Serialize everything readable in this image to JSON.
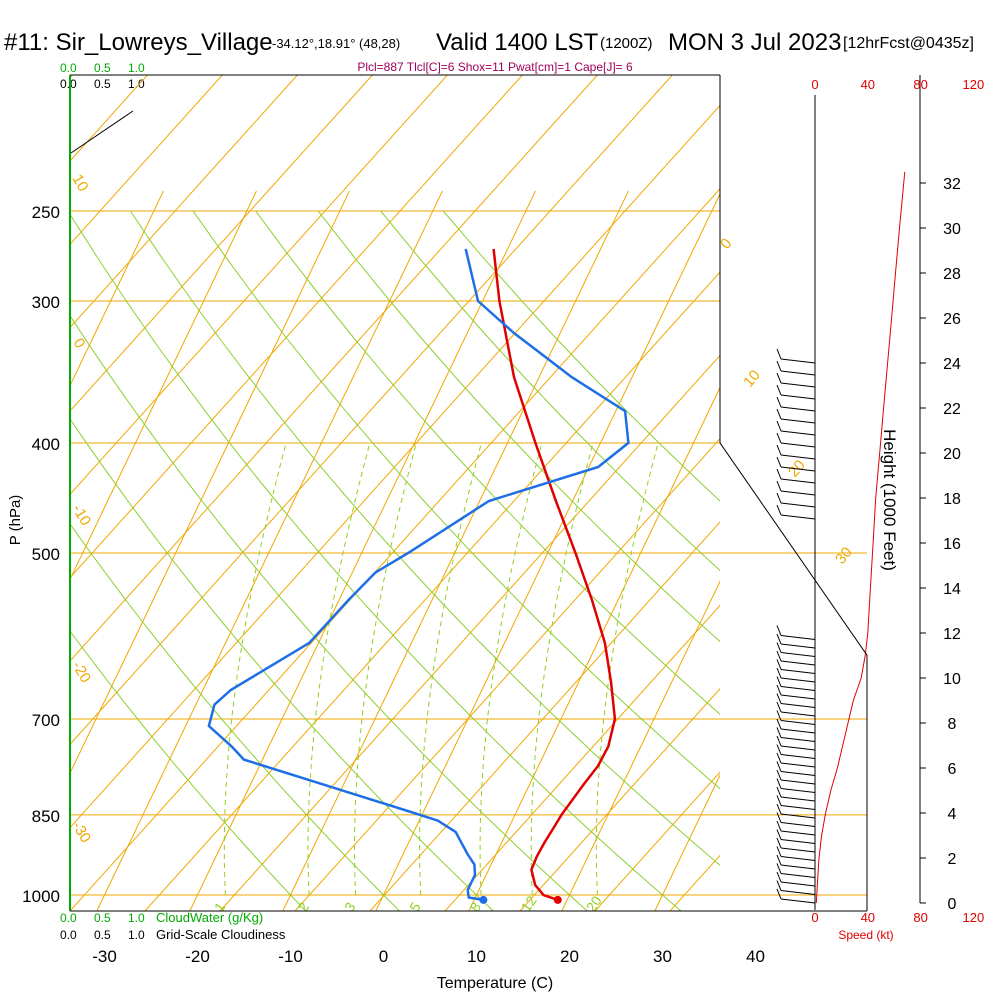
{
  "header": {
    "station": "#11: Sir_Lowreys_Village",
    "coords": "-34.12°,18.91° (48,28)",
    "valid": "Valid 1400 LST",
    "utc": "(1200Z)",
    "date": "MON 3 Jul 2023",
    "fcst": "[12hrFcst@0435z]",
    "params": "Plcl=887 Tlcl[C]=6 Shox=11 Pwat[cm]=1 Cape[J]= 6"
  },
  "colors": {
    "temp": "#e00000",
    "dewpoint": "#1e6fe6",
    "isotherm_grid": "#f0a800",
    "mixing_ratio": "#90d020",
    "adiabat": "#8ccf30",
    "cloud": "#00aa00",
    "speed": "#e00000",
    "params": "#a0005a"
  },
  "legend": {
    "cloudwater_label": "CloudWater (g/Kg)",
    "cloudiness_label": "Grid-Scale Cloudiness",
    "scale": [
      "0.0",
      "0.5",
      "1.0"
    ]
  },
  "axes": {
    "xlabel": "Temperature (C)",
    "ylabel": "P (hPa)",
    "height_label": "Height (1000 Feet)",
    "speed_label": "Speed (kt)"
  },
  "chart_data": {
    "type": "skew-t",
    "pressure_ticks": [
      250,
      300,
      400,
      500,
      700,
      850,
      1000
    ],
    "temp_ticks": [
      -30,
      -20,
      -10,
      0,
      10,
      20,
      30,
      40
    ],
    "height_ticks_kft": [
      0,
      2,
      4,
      6,
      8,
      10,
      12,
      14,
      16,
      18,
      20,
      22,
      24,
      26,
      28,
      30,
      32
    ],
    "speed_ticks_kt": [
      0,
      40,
      80,
      120
    ],
    "mixing_ratio_labels": [
      "1",
      "2",
      "3",
      "5",
      "8",
      "12",
      "20"
    ],
    "isotherm_labels": [
      "10",
      "0",
      "-10",
      "-20",
      "-30"
    ],
    "adiabat_labels": [
      "0",
      "10",
      "20",
      "30"
    ],
    "temperature_profile": [
      {
        "p": 1010,
        "t": 19.0
      },
      {
        "p": 1000,
        "t": 17.2
      },
      {
        "p": 980,
        "t": 15.8
      },
      {
        "p": 950,
        "t": 14.6
      },
      {
        "p": 925,
        "t": 14.5
      },
      {
        "p": 900,
        "t": 14.6
      },
      {
        "p": 875,
        "t": 14.8
      },
      {
        "p": 850,
        "t": 15.0
      },
      {
        "p": 800,
        "t": 15.8
      },
      {
        "p": 770,
        "t": 16.4
      },
      {
        "p": 740,
        "t": 16.5
      },
      {
        "p": 700,
        "t": 15.8
      },
      {
        "p": 650,
        "t": 13.5
      },
      {
        "p": 600,
        "t": 10.8
      },
      {
        "p": 550,
        "t": 7.2
      },
      {
        "p": 500,
        "t": 3.0
      },
      {
        "p": 450,
        "t": -1.8
      },
      {
        "p": 400,
        "t": -7.0
      },
      {
        "p": 350,
        "t": -12.7
      },
      {
        "p": 300,
        "t": -18.2
      },
      {
        "p": 270,
        "t": -21.5
      }
    ],
    "dewpoint_profile": [
      {
        "p": 1010,
        "t": 11.0
      },
      {
        "p": 1005,
        "t": 9.3
      },
      {
        "p": 990,
        "t": 8.8
      },
      {
        "p": 960,
        "t": 8.8
      },
      {
        "p": 940,
        "t": 8.2
      },
      {
        "p": 920,
        "t": 6.9
      },
      {
        "p": 880,
        "t": 4.5
      },
      {
        "p": 860,
        "t": 2.0
      },
      {
        "p": 840,
        "t": -2.5
      },
      {
        "p": 800,
        "t": -12.0
      },
      {
        "p": 760,
        "t": -22.0
      },
      {
        "p": 740,
        "t": -24.0
      },
      {
        "p": 710,
        "t": -27.5
      },
      {
        "p": 680,
        "t": -28.0
      },
      {
        "p": 660,
        "t": -27.0
      },
      {
        "p": 600,
        "t": -21.0
      },
      {
        "p": 550,
        "t": -19.0
      },
      {
        "p": 520,
        "t": -17.5
      },
      {
        "p": 500,
        "t": -15.0
      },
      {
        "p": 450,
        "t": -9.0
      },
      {
        "p": 420,
        "t": 1.0
      },
      {
        "p": 400,
        "t": 3.0
      },
      {
        "p": 375,
        "t": 1.0
      },
      {
        "p": 350,
        "t": -6.5
      },
      {
        "p": 320,
        "t": -15.0
      },
      {
        "p": 300,
        "t": -20.5
      },
      {
        "p": 270,
        "t": -24.5
      }
    ],
    "surface_temperature": 19.0,
    "surface_dewpoint": 11.0,
    "wind_speed_profile": [
      {
        "h_kft": 0.0,
        "kt": 1
      },
      {
        "h_kft": 1.0,
        "kt": 2
      },
      {
        "h_kft": 2.0,
        "kt": 3
      },
      {
        "h_kft": 3.0,
        "kt": 5
      },
      {
        "h_kft": 4.0,
        "kt": 8
      },
      {
        "h_kft": 5.0,
        "kt": 12
      },
      {
        "h_kft": 6.0,
        "kt": 17
      },
      {
        "h_kft": 7.0,
        "kt": 21
      },
      {
        "h_kft": 8.0,
        "kt": 25
      },
      {
        "h_kft": 9.0,
        "kt": 29
      },
      {
        "h_kft": 10.0,
        "kt": 35
      },
      {
        "h_kft": 11.0,
        "kt": 38
      },
      {
        "h_kft": 12.0,
        "kt": 40
      },
      {
        "h_kft": 14.0,
        "kt": 42
      },
      {
        "h_kft": 16.0,
        "kt": 44
      },
      {
        "h_kft": 18.0,
        "kt": 46
      },
      {
        "h_kft": 20.0,
        "kt": 49
      },
      {
        "h_kft": 22.0,
        "kt": 52
      },
      {
        "h_kft": 24.0,
        "kt": 55
      },
      {
        "h_kft": 26.0,
        "kt": 58
      },
      {
        "h_kft": 28.0,
        "kt": 61
      },
      {
        "h_kft": 30.0,
        "kt": 64
      },
      {
        "h_kft": 32.5,
        "kt": 68
      }
    ]
  }
}
